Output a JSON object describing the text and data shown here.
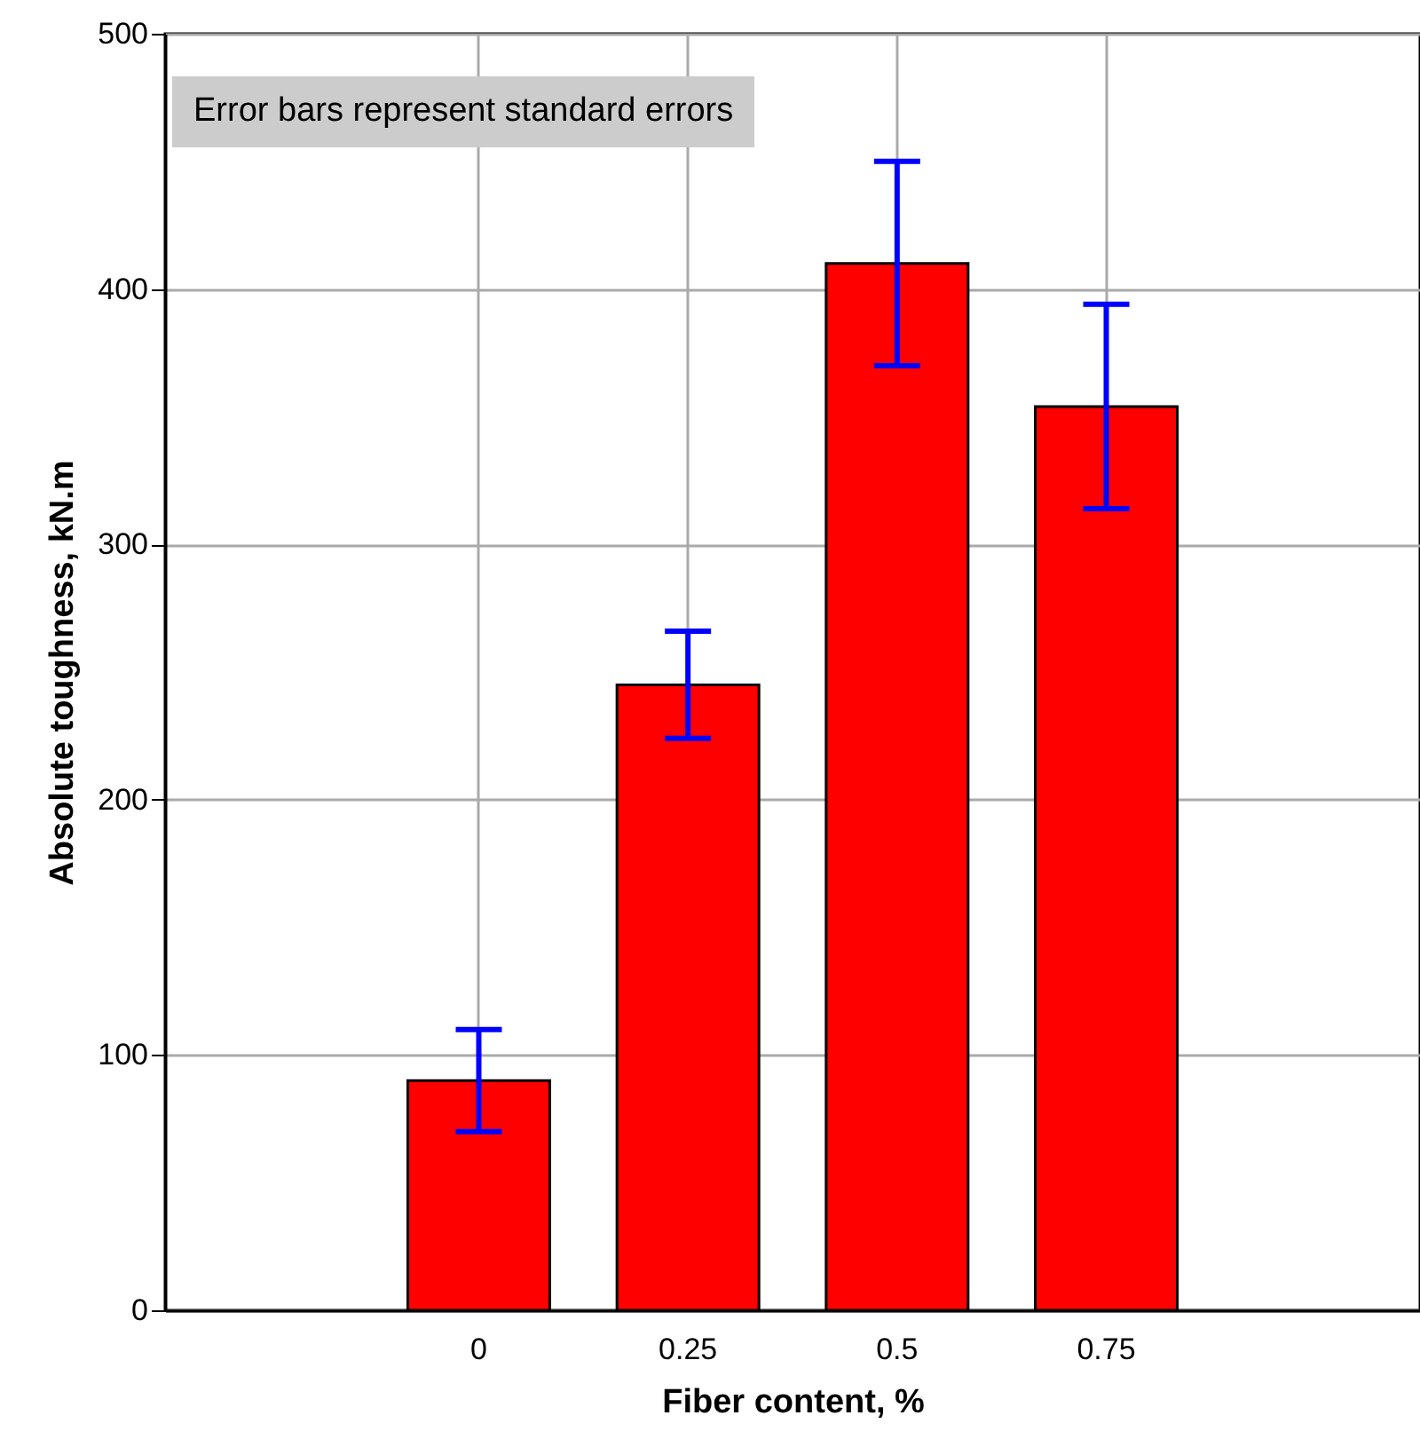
{
  "chart_data": {
    "type": "bar",
    "xlabel": "Fiber content, %",
    "ylabel": "Absolute toughness, kN.m",
    "categories": [
      "0",
      "0.25",
      "0.5",
      "0.75"
    ],
    "values": [
      90,
      245,
      410,
      354
    ],
    "errors": [
      20,
      21,
      40,
      40
    ],
    "color": "#ff0000",
    "ylim": [
      0,
      500
    ],
    "yticks": [
      0,
      100,
      200,
      300,
      400,
      500
    ],
    "grid": true,
    "annotations": [
      "Error bars represent standard errors"
    ]
  }
}
